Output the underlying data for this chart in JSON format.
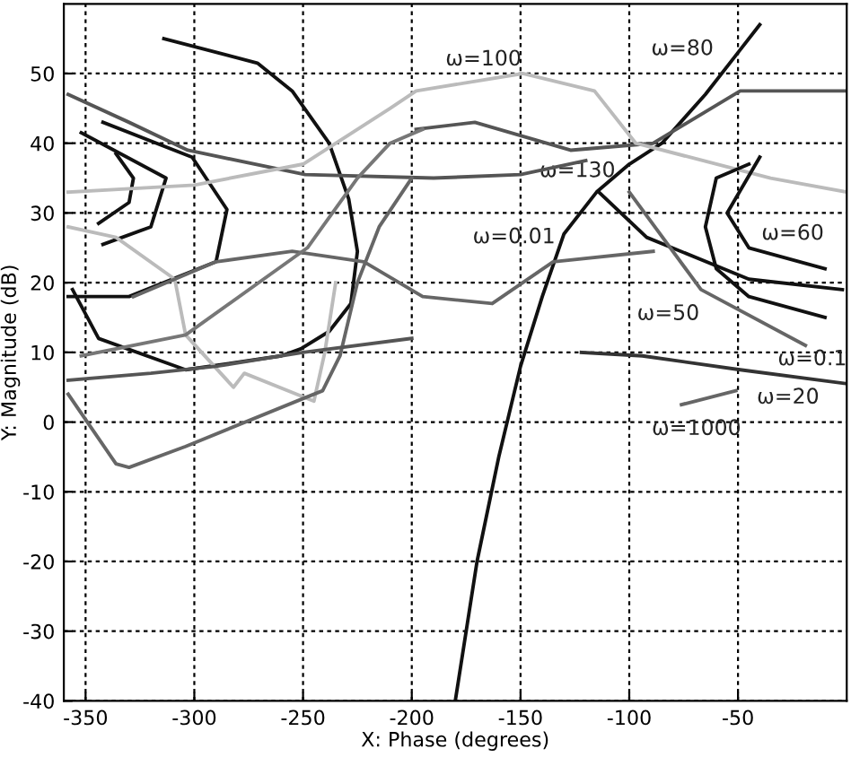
{
  "chart_data": {
    "type": "line",
    "xlabel": "X: Phase (degrees)",
    "ylabel": "Y: Magnitude (dB)",
    "xlim": [
      -360,
      0
    ],
    "ylim": [
      -40,
      60
    ],
    "xticks": [
      -350,
      -300,
      -250,
      -200,
      -150,
      -100,
      -50
    ],
    "yticks": [
      -40,
      -30,
      -20,
      -10,
      0,
      10,
      20,
      30,
      40,
      50
    ],
    "grid": true,
    "line_style": "solid",
    "marker": "none",
    "series": [
      {
        "color": "#111111",
        "x": [
          -180,
          -170,
          -160,
          -150,
          -140,
          -130,
          -115,
          -100,
          -85,
          -65,
          -50,
          -40
        ],
        "values": [
          -40,
          -20,
          -5,
          8,
          18,
          27,
          33,
          37,
          40,
          47,
          53,
          57
        ]
      },
      {
        "color": "#111111",
        "x": [
          -314,
          -271,
          -255,
          -238,
          -229,
          -225,
          -228,
          -238,
          -251,
          -260,
          -304,
          -344,
          -356
        ],
        "values": [
          55,
          51.5,
          47.5,
          40,
          32,
          24.5,
          17,
          13,
          10.5,
          9.5,
          7.5,
          12,
          19
        ]
      },
      {
        "color": "#111111",
        "x": [
          -336,
          -328,
          -330,
          -344
        ],
        "values": [
          38.5,
          35,
          31.5,
          28.5
        ]
      },
      {
        "color": "#111111",
        "x": [
          -352,
          -313,
          -320,
          -342
        ],
        "values": [
          41.5,
          35,
          28,
          25.5
        ]
      },
      {
        "color": "#111111",
        "x": [
          -342,
          -301,
          -285,
          -290,
          -330,
          -358
        ],
        "values": [
          43,
          38,
          30.5,
          23,
          18,
          18
        ]
      },
      {
        "color": "#555555",
        "x": [
          -358,
          -330,
          -303,
          -249,
          -190,
          -150,
          -120
        ],
        "values": [
          47,
          43,
          39,
          35.5,
          35,
          35.5,
          37.5
        ]
      },
      {
        "color": "#555555",
        "x": [
          -198,
          -171,
          -127,
          -89,
          -49,
          0
        ],
        "values": [
          42,
          43,
          39,
          40,
          47.5,
          47.5
        ]
      },
      {
        "color": "#bbbbbb",
        "x": [
          -358,
          -300,
          -250,
          -210,
          -198,
          -149,
          -116,
          -97,
          -35,
          0
        ],
        "values": [
          33,
          34,
          37,
          45,
          47.5,
          50,
          47.5,
          40,
          35,
          33
        ]
      },
      {
        "color": "#bbbbbb",
        "x": [
          -358,
          -336,
          -309,
          -304,
          -282,
          -277,
          -245,
          -240,
          -235
        ],
        "values": [
          28,
          26.5,
          20.5,
          12.5,
          5,
          7,
          3,
          10,
          20
        ]
      },
      {
        "color": "#666666",
        "x": [
          -358,
          -336,
          -330,
          -304,
          -249,
          -241,
          -233,
          -225,
          -215,
          -200
        ],
        "values": [
          4,
          -6,
          -6.5,
          -3.5,
          3.5,
          4.5,
          9.5,
          20,
          28,
          35
        ]
      },
      {
        "color": "#555555",
        "x": [
          -358,
          -320,
          -290,
          -250,
          -200
        ],
        "values": [
          6,
          7,
          8,
          10,
          12
        ]
      },
      {
        "color": "#111111",
        "x": [
          -114,
          -92,
          -45,
          -2
        ],
        "values": [
          33,
          26.5,
          20.5,
          19
        ]
      },
      {
        "color": "#666666",
        "x": [
          -100,
          -67,
          -19
        ],
        "values": [
          33,
          19,
          11
        ]
      },
      {
        "color": "#333333",
        "x": [
          -122,
          -94,
          -49,
          0
        ],
        "values": [
          10,
          9.5,
          7.5,
          5.5
        ]
      },
      {
        "color": "#666666",
        "x": [
          -76,
          -51
        ],
        "values": [
          2.5,
          4.5
        ]
      },
      {
        "color": "#666666",
        "x": [
          -328,
          -290,
          -255,
          -222,
          -195,
          -163,
          -135,
          -89
        ],
        "values": [
          18,
          23,
          24.5,
          23,
          18,
          17,
          23,
          24.5
        ]
      },
      {
        "color": "#777777",
        "x": [
          -352,
          -304,
          -248,
          -225,
          -210,
          -195
        ],
        "values": [
          9.5,
          12.5,
          25,
          35,
          40,
          42
        ]
      },
      {
        "color": "#111111",
        "x": [
          -45,
          -60,
          -65,
          -60,
          -45,
          -10
        ],
        "values": [
          37,
          35,
          28,
          22,
          18,
          15
        ]
      },
      {
        "color": "#111111",
        "x": [
          -40,
          -55,
          -45,
          -10
        ],
        "values": [
          38,
          30,
          25,
          22
        ]
      }
    ],
    "annotations": [
      "ω=100",
      "ω=80",
      "ω=130",
      "ω=0.01",
      "ω=60",
      "ω=50",
      "ω=0.1",
      "ω=20",
      "ω=1000"
    ]
  }
}
